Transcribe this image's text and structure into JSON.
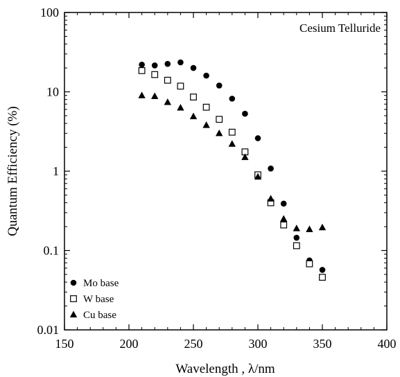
{
  "chart_data": {
    "type": "scatter",
    "title": "",
    "annotation": "Cesium Telluride",
    "xlabel": "Wavelength , λ/nm",
    "ylabel": "Quantum Efficiency (%)",
    "xlim": [
      150,
      400
    ],
    "ylim": [
      0.01,
      100
    ],
    "yscale": "log",
    "x_ticks": [
      150,
      200,
      250,
      300,
      350,
      400
    ],
    "y_ticks": [
      0.01,
      0.1,
      1,
      10,
      100
    ],
    "y_tick_labels": [
      "0.01",
      "0.1",
      "1",
      "10",
      "100"
    ],
    "grid": false,
    "legend_position": "bottom-left",
    "series": [
      {
        "name": "Mo base",
        "marker": "filled-circle",
        "points": [
          [
            210,
            22
          ],
          [
            220,
            21.5
          ],
          [
            230,
            22.5
          ],
          [
            240,
            23.5
          ],
          [
            250,
            20
          ],
          [
            260,
            16
          ],
          [
            270,
            12
          ],
          [
            280,
            8.2
          ],
          [
            290,
            5.3
          ],
          [
            300,
            2.6
          ],
          [
            310,
            1.08
          ],
          [
            320,
            0.39
          ],
          [
            330,
            0.145
          ],
          [
            340,
            0.075
          ],
          [
            350,
            0.057
          ]
        ]
      },
      {
        "name": "W base",
        "marker": "open-square",
        "points": [
          [
            210,
            18.5
          ],
          [
            220,
            16.5
          ],
          [
            230,
            14
          ],
          [
            240,
            11.8
          ],
          [
            250,
            8.6
          ],
          [
            260,
            6.4
          ],
          [
            270,
            4.5
          ],
          [
            280,
            3.1
          ],
          [
            290,
            1.75
          ],
          [
            300,
            0.9
          ],
          [
            310,
            0.4
          ],
          [
            320,
            0.21
          ],
          [
            330,
            0.115
          ],
          [
            340,
            0.068
          ],
          [
            350,
            0.046
          ]
        ]
      },
      {
        "name": "Cu base",
        "marker": "filled-triangle",
        "points": [
          [
            210,
            9
          ],
          [
            220,
            8.8
          ],
          [
            230,
            7.4
          ],
          [
            240,
            6.3
          ],
          [
            250,
            4.9
          ],
          [
            260,
            3.8
          ],
          [
            270,
            3.0
          ],
          [
            280,
            2.2
          ],
          [
            290,
            1.5
          ],
          [
            300,
            0.85
          ],
          [
            310,
            0.45
          ],
          [
            320,
            0.25
          ],
          [
            330,
            0.19
          ],
          [
            340,
            0.185
          ],
          [
            350,
            0.195
          ]
        ]
      }
    ]
  }
}
